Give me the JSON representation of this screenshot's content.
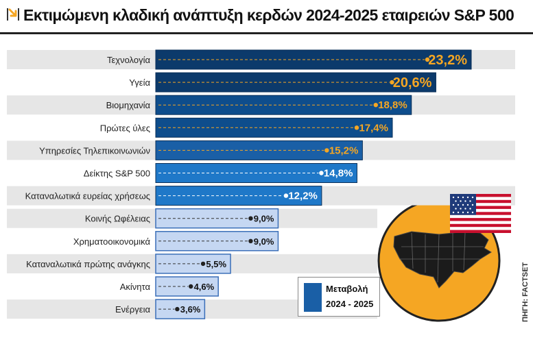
{
  "header": {
    "title": "Εκτιμώμενη κλαδική ανάπτυξη κερδών 2024-2025 εταιρειών S&P 500",
    "arrow_icon": "arrow-down-right-icon"
  },
  "source": "ΠΗΓΗ: FACTSET",
  "legend": {
    "line1": "Μεταβολή",
    "line2": "2024 - 2025"
  },
  "colors": {
    "dark_navy": "#0c3a6b",
    "navy": "#0e4d8c",
    "blue": "#1a5fa6",
    "bright_blue": "#1f78c8",
    "light_blue": "#c5d7f2",
    "orange": "#f5a623",
    "label_band": "#e6e6e6"
  },
  "chart_data": {
    "type": "bar",
    "orientation": "horizontal",
    "title": "Εκτιμώμενη κλαδική ανάπτυξη κερδών 2024-2025 εταιρειών S&P 500",
    "categories": [
      "Τεχνολογία",
      "Υγεία",
      "Βιομηχανία",
      "Πρώτες ύλες",
      "Υπηρεσίες Τηλεπικοινωνιών",
      "Δείκτης S&P 500",
      "Καταναλωτικά ευρείας χρήσεως",
      "Κοινής Ωφέλειας",
      "Χρηματοοικονομικά",
      "Καταναλωτικά πρώτης ανάγκης",
      "Ακίνητα",
      "Ενέργεια"
    ],
    "values": [
      23.2,
      20.6,
      18.8,
      17.4,
      15.2,
      14.8,
      12.2,
      9.0,
      9.0,
      5.5,
      4.6,
      3.6
    ],
    "labels": [
      "23,2%",
      "20,6%",
      "18,8%",
      "17,4%",
      "15,2%",
      "14,8%",
      "12,2%",
      "9,0%",
      "9,0%",
      "5,5%",
      "4,6%",
      "3,6%"
    ],
    "series": [
      {
        "name": "Μεταβολή 2024 - 2025",
        "values": [
          23.2,
          20.6,
          18.8,
          17.4,
          15.2,
          14.8,
          12.2,
          9.0,
          9.0,
          5.5,
          4.6,
          3.6
        ]
      }
    ],
    "xlim": [
      0,
      23.2
    ],
    "grid": false,
    "legend_position": "bottom-right"
  }
}
